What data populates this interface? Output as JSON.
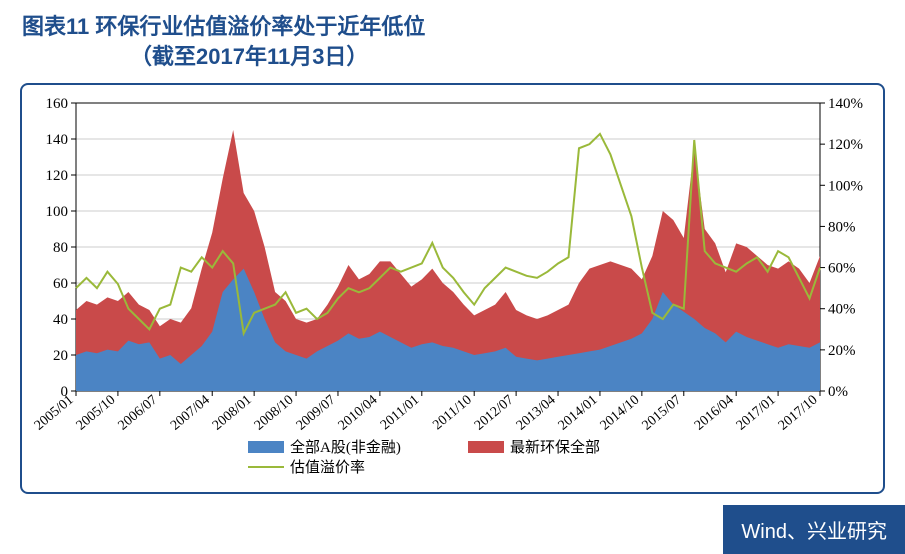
{
  "header": {
    "title": "图表11  环保行业估值溢价率处于近年低位",
    "subtitle": "（截至2017年11月3日）"
  },
  "source": "Wind、兴业研究",
  "chart": {
    "type": "area-line-combo",
    "background_color": "#ffffff",
    "grid_color": "#cccccc",
    "border_color": "#000000",
    "left_axis": {
      "min": 0,
      "max": 160,
      "step": 20,
      "labels": [
        "0",
        "20",
        "40",
        "60",
        "80",
        "100",
        "120",
        "140",
        "160"
      ]
    },
    "right_axis": {
      "min": 0,
      "max": 140,
      "step": 20,
      "labels": [
        "0%",
        "20%",
        "40%",
        "60%",
        "80%",
        "100%",
        "120%",
        "140%"
      ]
    },
    "x_labels": [
      "2005/01",
      "2005/10",
      "2006/07",
      "2007/04",
      "2008/01",
      "2008/10",
      "2009/07",
      "2010/04",
      "2011/01",
      "2011/10",
      "2012/07",
      "2013/04",
      "2014/01",
      "2014/10",
      "2015/07",
      "2016/04",
      "2017/01",
      "2017/10"
    ],
    "series": {
      "blue_area": {
        "name": "全部A股(非金融)",
        "color": "#4b84c4",
        "legend_box": "#4b84c4",
        "data": [
          20,
          22,
          21,
          23,
          22,
          28,
          26,
          27,
          18,
          20,
          15,
          20,
          25,
          33,
          55,
          62,
          68,
          55,
          40,
          27,
          22,
          20,
          18,
          22,
          25,
          28,
          32,
          29,
          30,
          33,
          30,
          27,
          24,
          26,
          27,
          25,
          24,
          22,
          20,
          21,
          22,
          24,
          19,
          18,
          17,
          18,
          19,
          20,
          21,
          22,
          23,
          25,
          27,
          29,
          32,
          40,
          55,
          48,
          44,
          40,
          35,
          32,
          27,
          33,
          30,
          28,
          26,
          24,
          26,
          25,
          24,
          27
        ]
      },
      "red_area": {
        "name": "最新环保全部",
        "color": "#c94a4a",
        "legend_box": "#c94a4a",
        "data": [
          45,
          50,
          48,
          52,
          50,
          55,
          48,
          45,
          36,
          40,
          38,
          46,
          68,
          88,
          118,
          145,
          110,
          100,
          80,
          55,
          50,
          40,
          38,
          40,
          48,
          58,
          70,
          62,
          65,
          72,
          72,
          65,
          58,
          62,
          68,
          60,
          55,
          48,
          42,
          45,
          48,
          55,
          45,
          42,
          40,
          42,
          45,
          48,
          60,
          68,
          70,
          72,
          70,
          68,
          62,
          75,
          100,
          95,
          85,
          135,
          90,
          82,
          66,
          82,
          80,
          75,
          70,
          68,
          72,
          68,
          60,
          75
        ]
      },
      "green_line": {
        "name": "估值溢价率",
        "color": "#9ab93a",
        "stroke_width": 2,
        "data": [
          50,
          55,
          50,
          58,
          52,
          40,
          35,
          30,
          40,
          42,
          60,
          58,
          65,
          60,
          68,
          62,
          28,
          38,
          40,
          42,
          48,
          38,
          40,
          35,
          38,
          45,
          50,
          48,
          50,
          55,
          60,
          58,
          60,
          62,
          72,
          60,
          55,
          48,
          42,
          50,
          55,
          60,
          58,
          56,
          55,
          58,
          62,
          65,
          118,
          120,
          125,
          115,
          100,
          85,
          60,
          38,
          35,
          42,
          40,
          122,
          68,
          62,
          60,
          58,
          62,
          65,
          58,
          68,
          65,
          55,
          45,
          60
        ]
      }
    },
    "points": 72,
    "legend_labels": {
      "blue": "全部A股(非金融)",
      "red": "最新环保全部",
      "green": "估值溢价率"
    }
  }
}
